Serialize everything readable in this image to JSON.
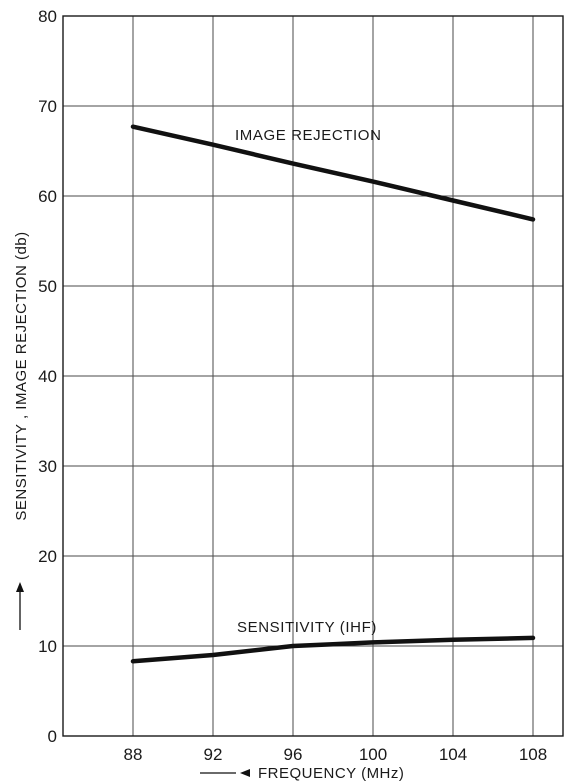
{
  "chart_data": {
    "type": "line",
    "xlabel": "FREQUENCY (MHz)",
    "ylabel": "SENSITIVITY , IMAGE REJECTION (db)",
    "xlim": [
      84.5,
      109.5
    ],
    "ylim": [
      0,
      80
    ],
    "x_ticks": [
      88,
      92,
      96,
      100,
      104,
      108
    ],
    "x_tick_labels": [
      "88",
      "92",
      "96",
      "100",
      "104",
      "108"
    ],
    "y_ticks": [
      0,
      10,
      20,
      30,
      40,
      50,
      60,
      70,
      80
    ],
    "y_tick_labels": [
      "0",
      "10",
      "20",
      "30",
      "40",
      "50",
      "60",
      "70",
      "80"
    ],
    "grid": true,
    "series": [
      {
        "name": "IMAGE REJECTION",
        "x": [
          88,
          92,
          96,
          100,
          104,
          108
        ],
        "y": [
          67.7,
          65.7,
          63.6,
          61.6,
          59.5,
          57.4
        ]
      },
      {
        "name": "SENSITIVITY (IHF)",
        "x": [
          88,
          92,
          96,
          98,
          100,
          104,
          108
        ],
        "y": [
          8.3,
          9.0,
          10.0,
          10.2,
          10.4,
          10.7,
          10.9
        ]
      }
    ]
  }
}
